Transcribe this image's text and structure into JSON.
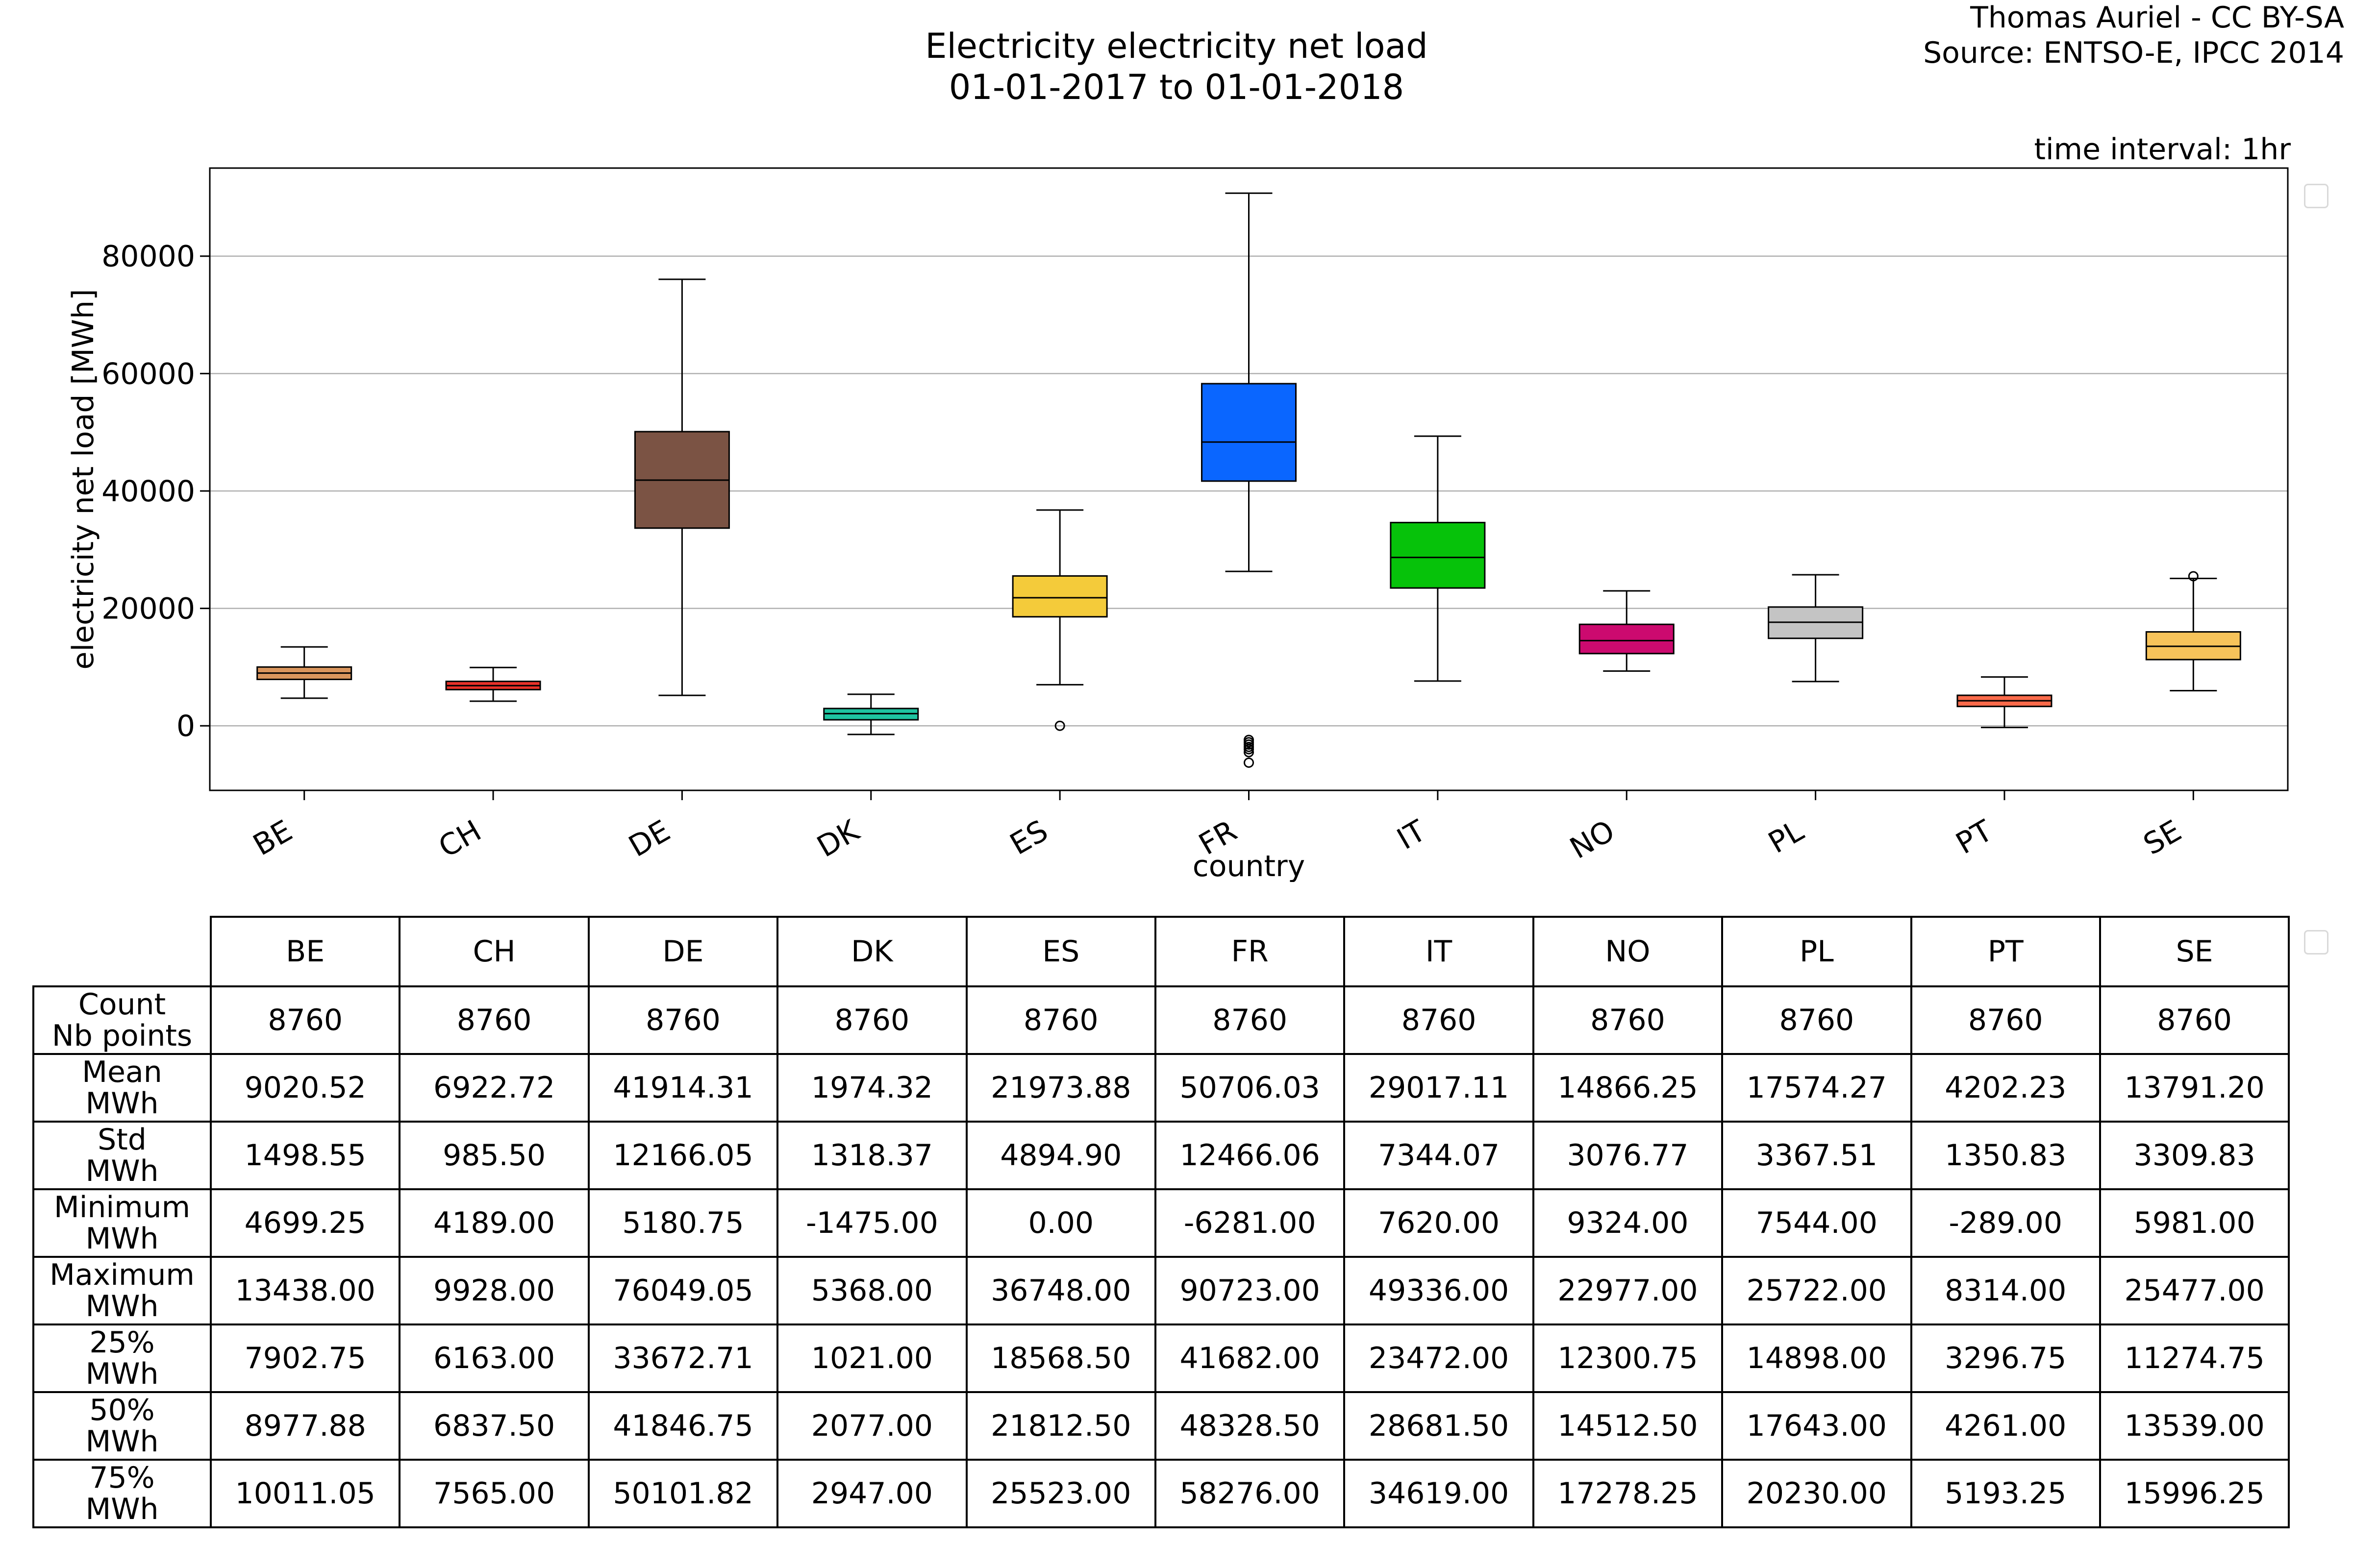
{
  "title": {
    "line1": "Electricity electricity net load",
    "line2": "01-01-2017 to 01-01-2018"
  },
  "credit": {
    "line1": "Thomas Auriel - CC BY-SA",
    "line2": "Source: ENTSO-E, IPCC 2014"
  },
  "interval_label": "time interval: 1hr",
  "chart_data": {
    "type": "box",
    "xlabel": "country",
    "ylabel": "electricity net load [MWh]",
    "ylim": [
      -11000,
      95000
    ],
    "yticks": [
      0,
      20000,
      40000,
      60000,
      80000
    ],
    "grid": "horizontal",
    "categories": [
      "BE",
      "CH",
      "DE",
      "DK",
      "ES",
      "FR",
      "IT",
      "NO",
      "PL",
      "PT",
      "SE"
    ],
    "boxes": [
      {
        "label": "BE",
        "color": "#d9955d",
        "whisker_low": 4699.25,
        "q1": 7902.75,
        "median": 8977.88,
        "q3": 10011.05,
        "whisker_high": 13438.0,
        "outliers": []
      },
      {
        "label": "CH",
        "color": "#e8322a",
        "whisker_low": 4189.0,
        "q1": 6163.0,
        "median": 6837.5,
        "q3": 7565.0,
        "whisker_high": 9928.0,
        "outliers": []
      },
      {
        "label": "DE",
        "color": "#7b5344",
        "whisker_low": 5180.75,
        "q1": 33672.71,
        "median": 41846.75,
        "q3": 50101.82,
        "whisker_high": 76049.05,
        "outliers": []
      },
      {
        "label": "DK",
        "color": "#1ec4a0",
        "whisker_low": -1475.0,
        "q1": 1021.0,
        "median": 2077.0,
        "q3": 2947.0,
        "whisker_high": 5368.0,
        "outliers": []
      },
      {
        "label": "ES",
        "color": "#f4cb3a",
        "whisker_low": 7000.0,
        "q1": 18568.5,
        "median": 21812.5,
        "q3": 25523.0,
        "whisker_high": 36748.0,
        "outliers": [
          0
        ]
      },
      {
        "label": "FR",
        "color": "#0a66ff",
        "whisker_low": 26300.0,
        "q1": 41682.0,
        "median": 48328.5,
        "q3": 58276.0,
        "whisker_high": 90723.0,
        "outliers": [
          -6281,
          -4500,
          -4000,
          -3600,
          -3200,
          -2800,
          -2400
        ]
      },
      {
        "label": "IT",
        "color": "#06c20a",
        "whisker_low": 7620.0,
        "q1": 23472.0,
        "median": 28681.5,
        "q3": 34619.0,
        "whisker_high": 49336.0,
        "outliers": []
      },
      {
        "label": "NO",
        "color": "#cc0a6f",
        "whisker_low": 9324.0,
        "q1": 12300.75,
        "median": 14512.5,
        "q3": 17278.25,
        "whisker_high": 22977.0,
        "outliers": []
      },
      {
        "label": "PL",
        "color": "#c4c4c4",
        "whisker_low": 7544.0,
        "q1": 14898.0,
        "median": 17643.0,
        "q3": 20230.0,
        "whisker_high": 25722.0,
        "outliers": []
      },
      {
        "label": "PT",
        "color": "#fa6a4a",
        "whisker_low": -289.0,
        "q1": 3296.75,
        "median": 4261.0,
        "q3": 5193.25,
        "whisker_high": 8314.0,
        "outliers": []
      },
      {
        "label": "SE",
        "color": "#f7c35a",
        "whisker_low": 5981.0,
        "q1": 11274.75,
        "median": 13539.0,
        "q3": 15996.25,
        "whisker_high": 25100.0,
        "outliers": [
          25477
        ]
      }
    ]
  },
  "table": {
    "columns": [
      "BE",
      "CH",
      "DE",
      "DK",
      "ES",
      "FR",
      "IT",
      "NO",
      "PL",
      "PT",
      "SE"
    ],
    "rows": [
      {
        "label1": "Count",
        "label2": "Nb points",
        "values": [
          "8760",
          "8760",
          "8760",
          "8760",
          "8760",
          "8760",
          "8760",
          "8760",
          "8760",
          "8760",
          "8760"
        ]
      },
      {
        "label1": "Mean",
        "label2": "MWh",
        "values": [
          "9020.52",
          "6922.72",
          "41914.31",
          "1974.32",
          "21973.88",
          "50706.03",
          "29017.11",
          "14866.25",
          "17574.27",
          "4202.23",
          "13791.20"
        ]
      },
      {
        "label1": "Std",
        "label2": "MWh",
        "values": [
          "1498.55",
          "985.50",
          "12166.05",
          "1318.37",
          "4894.90",
          "12466.06",
          "7344.07",
          "3076.77",
          "3367.51",
          "1350.83",
          "3309.83"
        ]
      },
      {
        "label1": "Minimum",
        "label2": "MWh",
        "values": [
          "4699.25",
          "4189.00",
          "5180.75",
          "-1475.00",
          "0.00",
          "-6281.00",
          "7620.00",
          "9324.00",
          "7544.00",
          "-289.00",
          "5981.00"
        ]
      },
      {
        "label1": "Maximum",
        "label2": "MWh",
        "values": [
          "13438.00",
          "9928.00",
          "76049.05",
          "5368.00",
          "36748.00",
          "90723.00",
          "49336.00",
          "22977.00",
          "25722.00",
          "8314.00",
          "25477.00"
        ]
      },
      {
        "label1": "25%",
        "label2": "MWh",
        "values": [
          "7902.75",
          "6163.00",
          "33672.71",
          "1021.00",
          "18568.50",
          "41682.00",
          "23472.00",
          "12300.75",
          "14898.00",
          "3296.75",
          "11274.75"
        ]
      },
      {
        "label1": "50%",
        "label2": "MWh",
        "values": [
          "8977.88",
          "6837.50",
          "41846.75",
          "2077.00",
          "21812.50",
          "48328.50",
          "28681.50",
          "14512.50",
          "17643.00",
          "4261.00",
          "13539.00"
        ]
      },
      {
        "label1": "75%",
        "label2": "MWh",
        "values": [
          "10011.05",
          "7565.00",
          "50101.82",
          "2947.00",
          "25523.00",
          "58276.00",
          "34619.00",
          "17278.25",
          "20230.00",
          "5193.25",
          "15996.25"
        ]
      }
    ]
  }
}
